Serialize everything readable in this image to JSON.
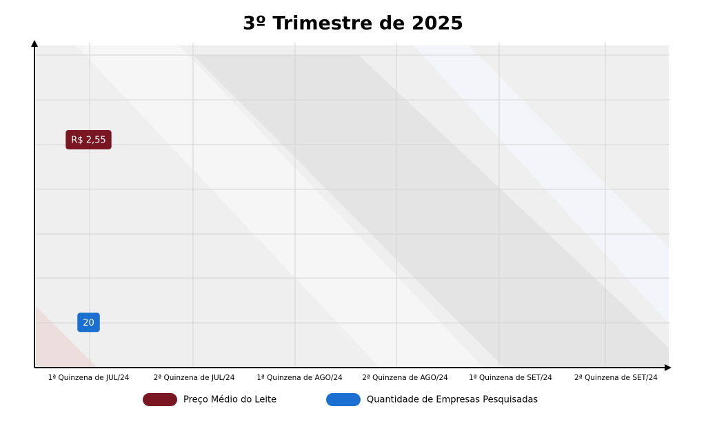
{
  "chart_data": {
    "type": "line",
    "title": "3º Trimestre de 2025",
    "categories": [
      "1ª Quinzena de JUL/24",
      "2ª Quinzena de JUL/24",
      "1ª Quinzena de AGO/24",
      "2ª Quinzena de AGO/24",
      "1ª Quinzena de SET/24",
      "2ª Quinzena de SET/24"
    ],
    "series": [
      {
        "name": "Preço Médio do Leite",
        "color": "#7a1522",
        "axis": "y2",
        "values": [
          2.55,
          null,
          null,
          null,
          null,
          null
        ],
        "value_labels": [
          "R$ 2,55",
          null,
          null,
          null,
          null,
          null
        ]
      },
      {
        "name": "Quantidade de Empresas Pesquisadas",
        "color": "#1b6fd1",
        "values": [
          20,
          null,
          null,
          null,
          null,
          null
        ]
      }
    ],
    "ylim": [
      0,
      140
    ],
    "y2lim": [
      0,
      3.5
    ],
    "grid": true,
    "legend": "bottom"
  }
}
